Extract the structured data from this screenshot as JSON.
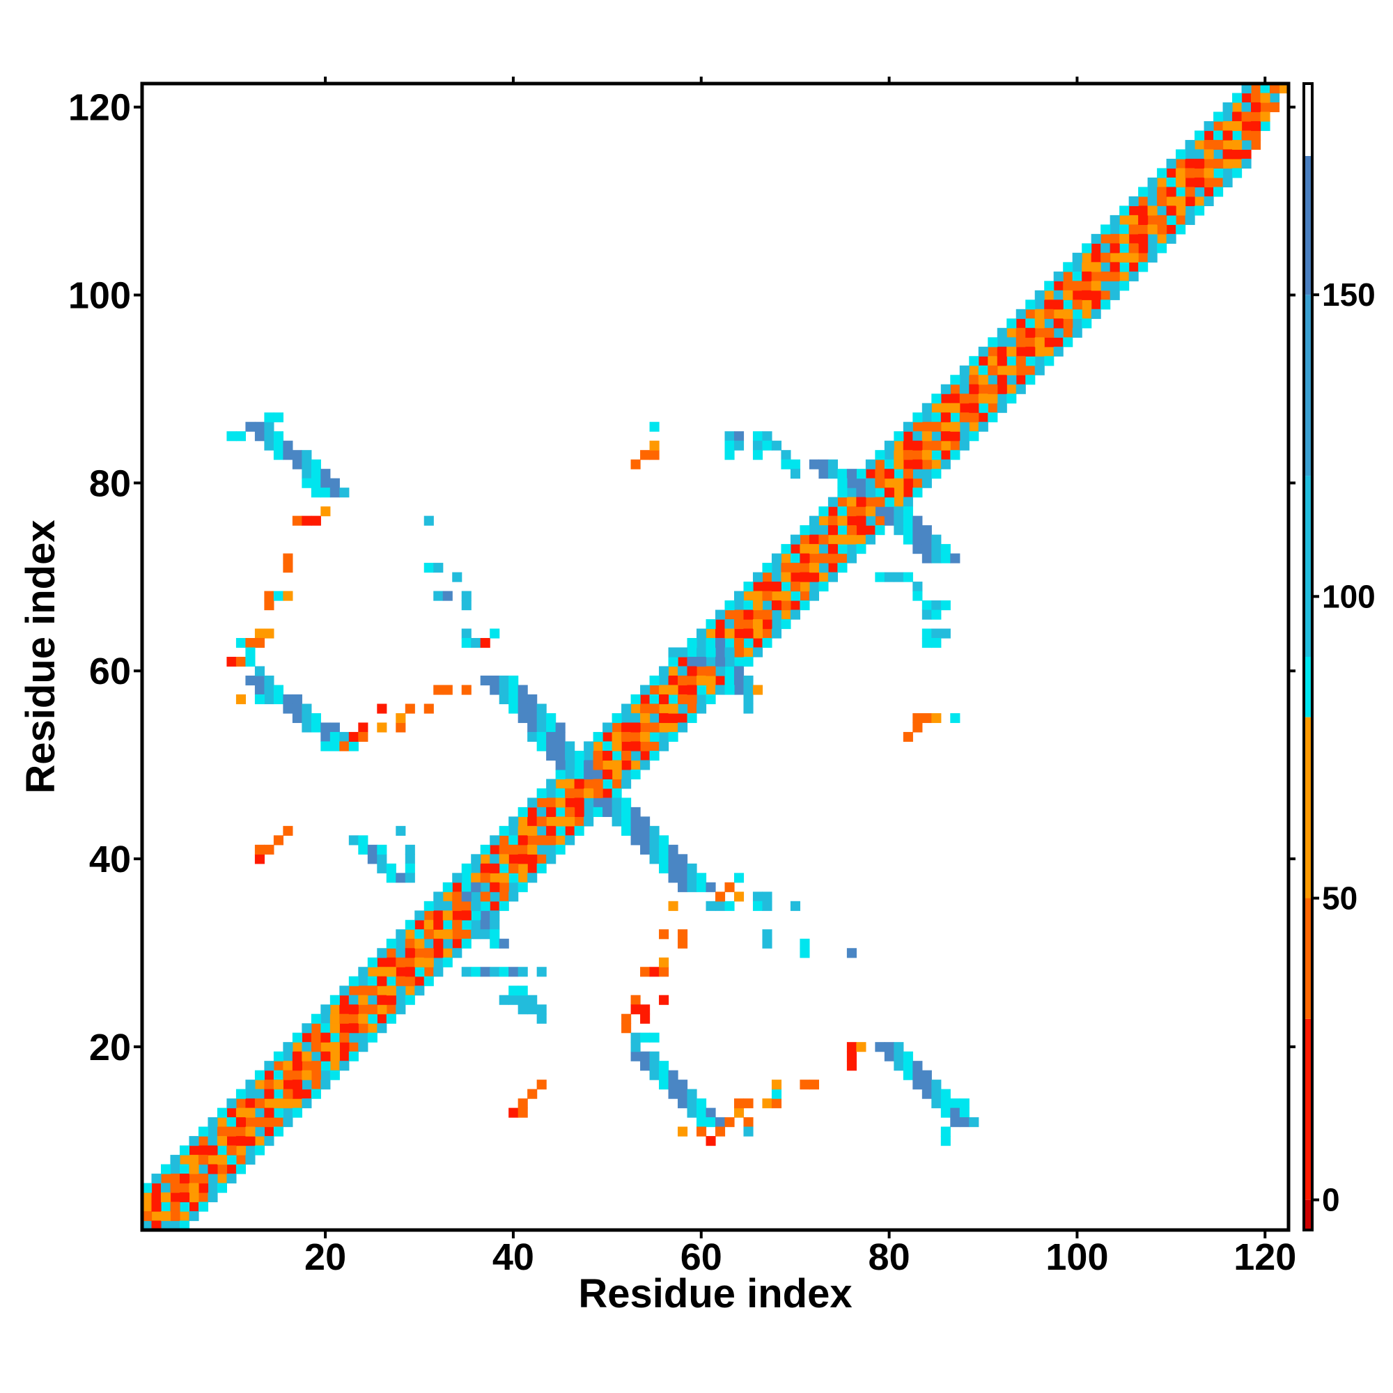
{
  "chart_data": {
    "type": "heatmap",
    "title": "",
    "xlabel": "Residue index",
    "ylabel": "Residue index",
    "xlim": [
      1,
      122
    ],
    "ylim": [
      1,
      122
    ],
    "xticks": [
      20,
      40,
      60,
      80,
      100,
      120
    ],
    "yticks": [
      20,
      40,
      60,
      80,
      100,
      120
    ],
    "colorbar": {
      "range": [
        -5,
        185
      ],
      "ticks": [
        0,
        50,
        100,
        150
      ],
      "bands": [
        {
          "from": -5,
          "to": 0,
          "color": "#cc0000"
        },
        {
          "from": 0,
          "to": 30,
          "color": "#ff1a00"
        },
        {
          "from": 30,
          "to": 50,
          "color": "#ff6600"
        },
        {
          "from": 50,
          "to": 80,
          "color": "#ff9900"
        },
        {
          "from": 80,
          "to": 90,
          "color": "#00e5ee"
        },
        {
          "from": 90,
          "to": 120,
          "color": "#22bcdc"
        },
        {
          "from": 120,
          "to": 150,
          "color": "#3a9fd0"
        },
        {
          "from": 150,
          "to": 173,
          "color": "#4a7fc0"
        },
        {
          "from": 173,
          "to": 185,
          "color": "#ffffff"
        }
      ]
    },
    "cell_colors": {
      "r": "#ff1a00",
      "o": "#ff6600",
      "a": "#ff9900",
      "c": "#00e5ee",
      "l": "#22bcdc",
      "b": "#4a86c4"
    },
    "diagonal_bands": [
      {
        "from": 1,
        "to": 122,
        "offset": 0,
        "pattern": "olacro"
      },
      {
        "from": 1,
        "to": 119,
        "offset": 3,
        "pattern": "arol"
      },
      {
        "from": 1,
        "to": 119,
        "offset": -3,
        "pattern": "arol"
      },
      {
        "from": 1,
        "to": 120,
        "offset": 2,
        "pattern": "locar"
      },
      {
        "from": 1,
        "to": 120,
        "offset": -2,
        "pattern": "locar"
      },
      {
        "from": 1,
        "to": 121,
        "offset": 1,
        "pattern": "rao"
      },
      {
        "from": 1,
        "to": 121,
        "offset": -1,
        "pattern": "rao"
      },
      {
        "from": 1,
        "to": 118,
        "offset": 4,
        "pattern": "lc"
      },
      {
        "from": 1,
        "to": 118,
        "offset": -4,
        "pattern": "lc"
      }
    ],
    "strands": [
      {
        "x0": 12,
        "y0": 86,
        "x1": 20,
        "y1": 79,
        "width": 3,
        "pattern": "bblc"
      },
      {
        "x0": 12,
        "y0": 59,
        "x1": 21,
        "y1": 52,
        "width": 3,
        "pattern": "bblc"
      },
      {
        "x0": 37,
        "y0": 59,
        "x1": 46,
        "y1": 49,
        "width": 4,
        "pattern": "bblc"
      },
      {
        "x0": 49,
        "y0": 46,
        "x1": 58,
        "y1": 37,
        "width": 4,
        "pattern": "bblc"
      },
      {
        "x0": 53,
        "y0": 19,
        "x1": 60,
        "y1": 12,
        "width": 3,
        "pattern": "bblc"
      },
      {
        "x0": 79,
        "y0": 20,
        "x1": 87,
        "y1": 12,
        "width": 3,
        "pattern": "bblc"
      },
      {
        "x0": 79,
        "y0": 77,
        "x1": 84,
        "y1": 72,
        "width": 4,
        "pattern": "bblc"
      },
      {
        "x0": 72,
        "y0": 82,
        "x1": 77,
        "y1": 79,
        "width": 3,
        "pattern": "bblc"
      },
      {
        "x0": 60,
        "y0": 63,
        "x1": 64,
        "y1": 58,
        "width": 3,
        "pattern": "lcb"
      },
      {
        "x0": 23,
        "y0": 42,
        "x1": 27,
        "y1": 38,
        "width": 2,
        "pattern": "lcb"
      },
      {
        "x0": 34,
        "y0": 38,
        "x1": 38,
        "y1": 31,
        "width": 2,
        "pattern": "lcb"
      },
      {
        "x0": 35,
        "y0": 28,
        "x1": 41,
        "y1": 28,
        "width": 1,
        "pattern": "lcb"
      }
    ],
    "points": [
      {
        "x": 17,
        "y": 76,
        "c": "o"
      },
      {
        "x": 18,
        "y": 76,
        "c": "r"
      },
      {
        "x": 19,
        "y": 76,
        "c": "r"
      },
      {
        "x": 20,
        "y": 77,
        "c": "a"
      },
      {
        "x": 16,
        "y": 72,
        "c": "o"
      },
      {
        "x": 16,
        "y": 71,
        "c": "o"
      },
      {
        "x": 14,
        "y": 68,
        "c": "o"
      },
      {
        "x": 14,
        "y": 67,
        "c": "o"
      },
      {
        "x": 15,
        "y": 68,
        "c": "c"
      },
      {
        "x": 16,
        "y": 68,
        "c": "a"
      },
      {
        "x": 11,
        "y": 63,
        "c": "c"
      },
      {
        "x": 12,
        "y": 63,
        "c": "o"
      },
      {
        "x": 13,
        "y": 64,
        "c": "a"
      },
      {
        "x": 14,
        "y": 64,
        "c": "a"
      },
      {
        "x": 13,
        "y": 63,
        "c": "o"
      },
      {
        "x": 12,
        "y": 62,
        "c": "c"
      },
      {
        "x": 10,
        "y": 61,
        "c": "r"
      },
      {
        "x": 11,
        "y": 61,
        "c": "o"
      },
      {
        "x": 12,
        "y": 61,
        "c": "c"
      },
      {
        "x": 13,
        "y": 60,
        "c": "l"
      },
      {
        "x": 11,
        "y": 57,
        "c": "a"
      },
      {
        "x": 22,
        "y": 52,
        "c": "o"
      },
      {
        "x": 23,
        "y": 53,
        "c": "r"
      },
      {
        "x": 24,
        "y": 54,
        "c": "r"
      },
      {
        "x": 24,
        "y": 53,
        "c": "o"
      },
      {
        "x": 26,
        "y": 54,
        "c": "a"
      },
      {
        "x": 26,
        "y": 56,
        "c": "r"
      },
      {
        "x": 28,
        "y": 54,
        "c": "o"
      },
      {
        "x": 28,
        "y": 55,
        "c": "a"
      },
      {
        "x": 29,
        "y": 56,
        "c": "o"
      },
      {
        "x": 31,
        "y": 56,
        "c": "o"
      },
      {
        "x": 32,
        "y": 58,
        "c": "o"
      },
      {
        "x": 33,
        "y": 58,
        "c": "o"
      },
      {
        "x": 35,
        "y": 58,
        "c": "o"
      },
      {
        "x": 31,
        "y": 76,
        "c": "l"
      },
      {
        "x": 31,
        "y": 71,
        "c": "c"
      },
      {
        "x": 32,
        "y": 71,
        "c": "l"
      },
      {
        "x": 34,
        "y": 70,
        "c": "l"
      },
      {
        "x": 32,
        "y": 68,
        "c": "l"
      },
      {
        "x": 33,
        "y": 68,
        "c": "b"
      },
      {
        "x": 35,
        "y": 67,
        "c": "l"
      },
      {
        "x": 35,
        "y": 68,
        "c": "l"
      },
      {
        "x": 35,
        "y": 64,
        "c": "l"
      },
      {
        "x": 35,
        "y": 63,
        "c": "c"
      },
      {
        "x": 36,
        "y": 63,
        "c": "l"
      },
      {
        "x": 37,
        "y": 63,
        "c": "r"
      },
      {
        "x": 38,
        "y": 64,
        "c": "c"
      },
      {
        "x": 13,
        "y": 40,
        "c": "r"
      },
      {
        "x": 13,
        "y": 41,
        "c": "o"
      },
      {
        "x": 14,
        "y": 41,
        "c": "o"
      },
      {
        "x": 15,
        "y": 42,
        "c": "o"
      },
      {
        "x": 16,
        "y": 43,
        "c": "o"
      },
      {
        "x": 28,
        "y": 43,
        "c": "l"
      },
      {
        "x": 29,
        "y": 41,
        "c": "l"
      },
      {
        "x": 29,
        "y": 40,
        "c": "l"
      },
      {
        "x": 29,
        "y": 39,
        "c": "c"
      },
      {
        "x": 29,
        "y": 38,
        "c": "l"
      },
      {
        "x": 26,
        "y": 41,
        "c": "c"
      },
      {
        "x": 26,
        "y": 40,
        "c": "l"
      },
      {
        "x": 53,
        "y": 82,
        "c": "o"
      },
      {
        "x": 54,
        "y": 83,
        "c": "o"
      },
      {
        "x": 55,
        "y": 83,
        "c": "o"
      },
      {
        "x": 55,
        "y": 84,
        "c": "a"
      },
      {
        "x": 55,
        "y": 86,
        "c": "c"
      },
      {
        "x": 63,
        "y": 85,
        "c": "l"
      },
      {
        "x": 64,
        "y": 85,
        "c": "b"
      },
      {
        "x": 63,
        "y": 84,
        "c": "c"
      },
      {
        "x": 64,
        "y": 84,
        "c": "l"
      },
      {
        "x": 63,
        "y": 83,
        "c": "c"
      },
      {
        "x": 66,
        "y": 85,
        "c": "c"
      },
      {
        "x": 67,
        "y": 85,
        "c": "l"
      },
      {
        "x": 66,
        "y": 84,
        "c": "l"
      },
      {
        "x": 66,
        "y": 83,
        "c": "c"
      },
      {
        "x": 67,
        "y": 84,
        "c": "c"
      },
      {
        "x": 68,
        "y": 84,
        "c": "l"
      },
      {
        "x": 69,
        "y": 83,
        "c": "l"
      },
      {
        "x": 69,
        "y": 82,
        "c": "c"
      },
      {
        "x": 70,
        "y": 82,
        "c": "c"
      },
      {
        "x": 70,
        "y": 81,
        "c": "l"
      },
      {
        "x": 79,
        "y": 70,
        "c": "c"
      },
      {
        "x": 80,
        "y": 70,
        "c": "l"
      },
      {
        "x": 81,
        "y": 70,
        "c": "l"
      },
      {
        "x": 82,
        "y": 70,
        "c": "c"
      },
      {
        "x": 83,
        "y": 69,
        "c": "l"
      },
      {
        "x": 83,
        "y": 68,
        "c": "c"
      },
      {
        "x": 84,
        "y": 67,
        "c": "c"
      },
      {
        "x": 85,
        "y": 67,
        "c": "l"
      },
      {
        "x": 86,
        "y": 67,
        "c": "c"
      },
      {
        "x": 84,
        "y": 66,
        "c": "l"
      },
      {
        "x": 85,
        "y": 66,
        "c": "c"
      },
      {
        "x": 84,
        "y": 64,
        "c": "c"
      },
      {
        "x": 85,
        "y": 64,
        "c": "l"
      },
      {
        "x": 86,
        "y": 64,
        "c": "l"
      },
      {
        "x": 84,
        "y": 63,
        "c": "c"
      },
      {
        "x": 85,
        "y": 63,
        "c": "c"
      },
      {
        "x": 82,
        "y": 53,
        "c": "o"
      },
      {
        "x": 83,
        "y": 54,
        "c": "o"
      },
      {
        "x": 83,
        "y": 55,
        "c": "o"
      },
      {
        "x": 84,
        "y": 55,
        "c": "o"
      },
      {
        "x": 85,
        "y": 55,
        "c": "a"
      },
      {
        "x": 87,
        "y": 55,
        "c": "c"
      },
      {
        "x": 57,
        "y": 62,
        "c": "l"
      },
      {
        "x": 58,
        "y": 62,
        "c": "l"
      },
      {
        "x": 59,
        "y": 62,
        "c": "c"
      },
      {
        "x": 60,
        "y": 62,
        "c": "l"
      },
      {
        "x": 59,
        "y": 61,
        "c": "b"
      },
      {
        "x": 60,
        "y": 61,
        "c": "b"
      },
      {
        "x": 61,
        "y": 64,
        "c": "a"
      },
      {
        "x": 66,
        "y": 58,
        "c": "a"
      },
      {
        "x": 65,
        "y": 57,
        "c": "l"
      },
      {
        "x": 65,
        "y": 56,
        "c": "l"
      },
      {
        "x": 63,
        "y": 58,
        "c": "c"
      },
      {
        "x": 57,
        "y": 35,
        "c": "a"
      },
      {
        "x": 56,
        "y": 32,
        "c": "o"
      },
      {
        "x": 58,
        "y": 32,
        "c": "o"
      },
      {
        "x": 58,
        "y": 31,
        "c": "o"
      },
      {
        "x": 54,
        "y": 28,
        "c": "o"
      },
      {
        "x": 55,
        "y": 28,
        "c": "r"
      },
      {
        "x": 56,
        "y": 28,
        "c": "o"
      },
      {
        "x": 56,
        "y": 29,
        "c": "a"
      },
      {
        "x": 53,
        "y": 25,
        "c": "o"
      },
      {
        "x": 56,
        "y": 25,
        "c": "r"
      },
      {
        "x": 53,
        "y": 24,
        "c": "r"
      },
      {
        "x": 54,
        "y": 24,
        "c": "r"
      },
      {
        "x": 54,
        "y": 23,
        "c": "r"
      },
      {
        "x": 52,
        "y": 23,
        "c": "o"
      },
      {
        "x": 52,
        "y": 22,
        "c": "o"
      },
      {
        "x": 61,
        "y": 35,
        "c": "l"
      },
      {
        "x": 62,
        "y": 35,
        "c": "l"
      },
      {
        "x": 63,
        "y": 35,
        "c": "c"
      },
      {
        "x": 62,
        "y": 36,
        "c": "o"
      },
      {
        "x": 63,
        "y": 37,
        "c": "o"
      },
      {
        "x": 64,
        "y": 36,
        "c": "a"
      },
      {
        "x": 64,
        "y": 38,
        "c": "c"
      },
      {
        "x": 66,
        "y": 36,
        "c": "l"
      },
      {
        "x": 67,
        "y": 36,
        "c": "l"
      },
      {
        "x": 66,
        "y": 35,
        "c": "c"
      },
      {
        "x": 67,
        "y": 35,
        "c": "l"
      },
      {
        "x": 67,
        "y": 32,
        "c": "l"
      },
      {
        "x": 67,
        "y": 31,
        "c": "l"
      },
      {
        "x": 70,
        "y": 35,
        "c": "l"
      },
      {
        "x": 71,
        "y": 31,
        "c": "c"
      },
      {
        "x": 71,
        "y": 30,
        "c": "c"
      },
      {
        "x": 76,
        "y": 30,
        "c": "b"
      },
      {
        "x": 39,
        "y": 25,
        "c": "l"
      },
      {
        "x": 40,
        "y": 25,
        "c": "l"
      },
      {
        "x": 41,
        "y": 25,
        "c": "l"
      },
      {
        "x": 42,
        "y": 25,
        "c": "l"
      },
      {
        "x": 41,
        "y": 24,
        "c": "l"
      },
      {
        "x": 42,
        "y": 24,
        "c": "l"
      },
      {
        "x": 43,
        "y": 24,
        "c": "l"
      },
      {
        "x": 43,
        "y": 23,
        "c": "l"
      },
      {
        "x": 40,
        "y": 26,
        "c": "c"
      },
      {
        "x": 41,
        "y": 26,
        "c": "c"
      },
      {
        "x": 43,
        "y": 28,
        "c": "l"
      },
      {
        "x": 40,
        "y": 13,
        "c": "r"
      },
      {
        "x": 41,
        "y": 13,
        "c": "o"
      },
      {
        "x": 41,
        "y": 14,
        "c": "o"
      },
      {
        "x": 42,
        "y": 15,
        "c": "o"
      },
      {
        "x": 43,
        "y": 16,
        "c": "o"
      },
      {
        "x": 58,
        "y": 11,
        "c": "a"
      },
      {
        "x": 60,
        "y": 11,
        "c": "o"
      },
      {
        "x": 61,
        "y": 10,
        "c": "r"
      },
      {
        "x": 61,
        "y": 12,
        "c": "c"
      },
      {
        "x": 62,
        "y": 11,
        "c": "o"
      },
      {
        "x": 63,
        "y": 12,
        "c": "o"
      },
      {
        "x": 64,
        "y": 13,
        "c": "a"
      },
      {
        "x": 64,
        "y": 14,
        "c": "o"
      },
      {
        "x": 65,
        "y": 12,
        "c": "o"
      },
      {
        "x": 65,
        "y": 14,
        "c": "o"
      },
      {
        "x": 65,
        "y": 11,
        "c": "l"
      },
      {
        "x": 67,
        "y": 14,
        "c": "a"
      },
      {
        "x": 68,
        "y": 14,
        "c": "o"
      },
      {
        "x": 68,
        "y": 15,
        "c": "c"
      },
      {
        "x": 68,
        "y": 16,
        "c": "a"
      },
      {
        "x": 71,
        "y": 16,
        "c": "o"
      },
      {
        "x": 72,
        "y": 16,
        "c": "o"
      },
      {
        "x": 76,
        "y": 20,
        "c": "r"
      },
      {
        "x": 76,
        "y": 19,
        "c": "r"
      },
      {
        "x": 76,
        "y": 18,
        "c": "r"
      },
      {
        "x": 77,
        "y": 20,
        "c": "a"
      },
      {
        "x": 53,
        "y": 20,
        "c": "l"
      },
      {
        "x": 53,
        "y": 21,
        "c": "l"
      },
      {
        "x": 54,
        "y": 21,
        "c": "c"
      },
      {
        "x": 55,
        "y": 21,
        "c": "c"
      },
      {
        "x": 86,
        "y": 11,
        "c": "c"
      },
      {
        "x": 86,
        "y": 10,
        "c": "c"
      },
      {
        "x": 87,
        "y": 14,
        "c": "c"
      },
      {
        "x": 88,
        "y": 14,
        "c": "c"
      },
      {
        "x": 88,
        "y": 13,
        "c": "c"
      },
      {
        "x": 18,
        "y": 80,
        "c": "c"
      },
      {
        "x": 19,
        "y": 79,
        "c": "c"
      },
      {
        "x": 20,
        "y": 79,
        "c": "c"
      },
      {
        "x": 11,
        "y": 85,
        "c": "c"
      },
      {
        "x": 10,
        "y": 85,
        "c": "c"
      },
      {
        "x": 14,
        "y": 87,
        "c": "c"
      },
      {
        "x": 15,
        "y": 87,
        "c": "c"
      },
      {
        "x": 20,
        "y": 52,
        "c": "c"
      },
      {
        "x": 21,
        "y": 52,
        "c": "c"
      },
      {
        "x": 21,
        "y": 53,
        "c": "c"
      },
      {
        "x": 13,
        "y": 57,
        "c": "c"
      }
    ]
  }
}
